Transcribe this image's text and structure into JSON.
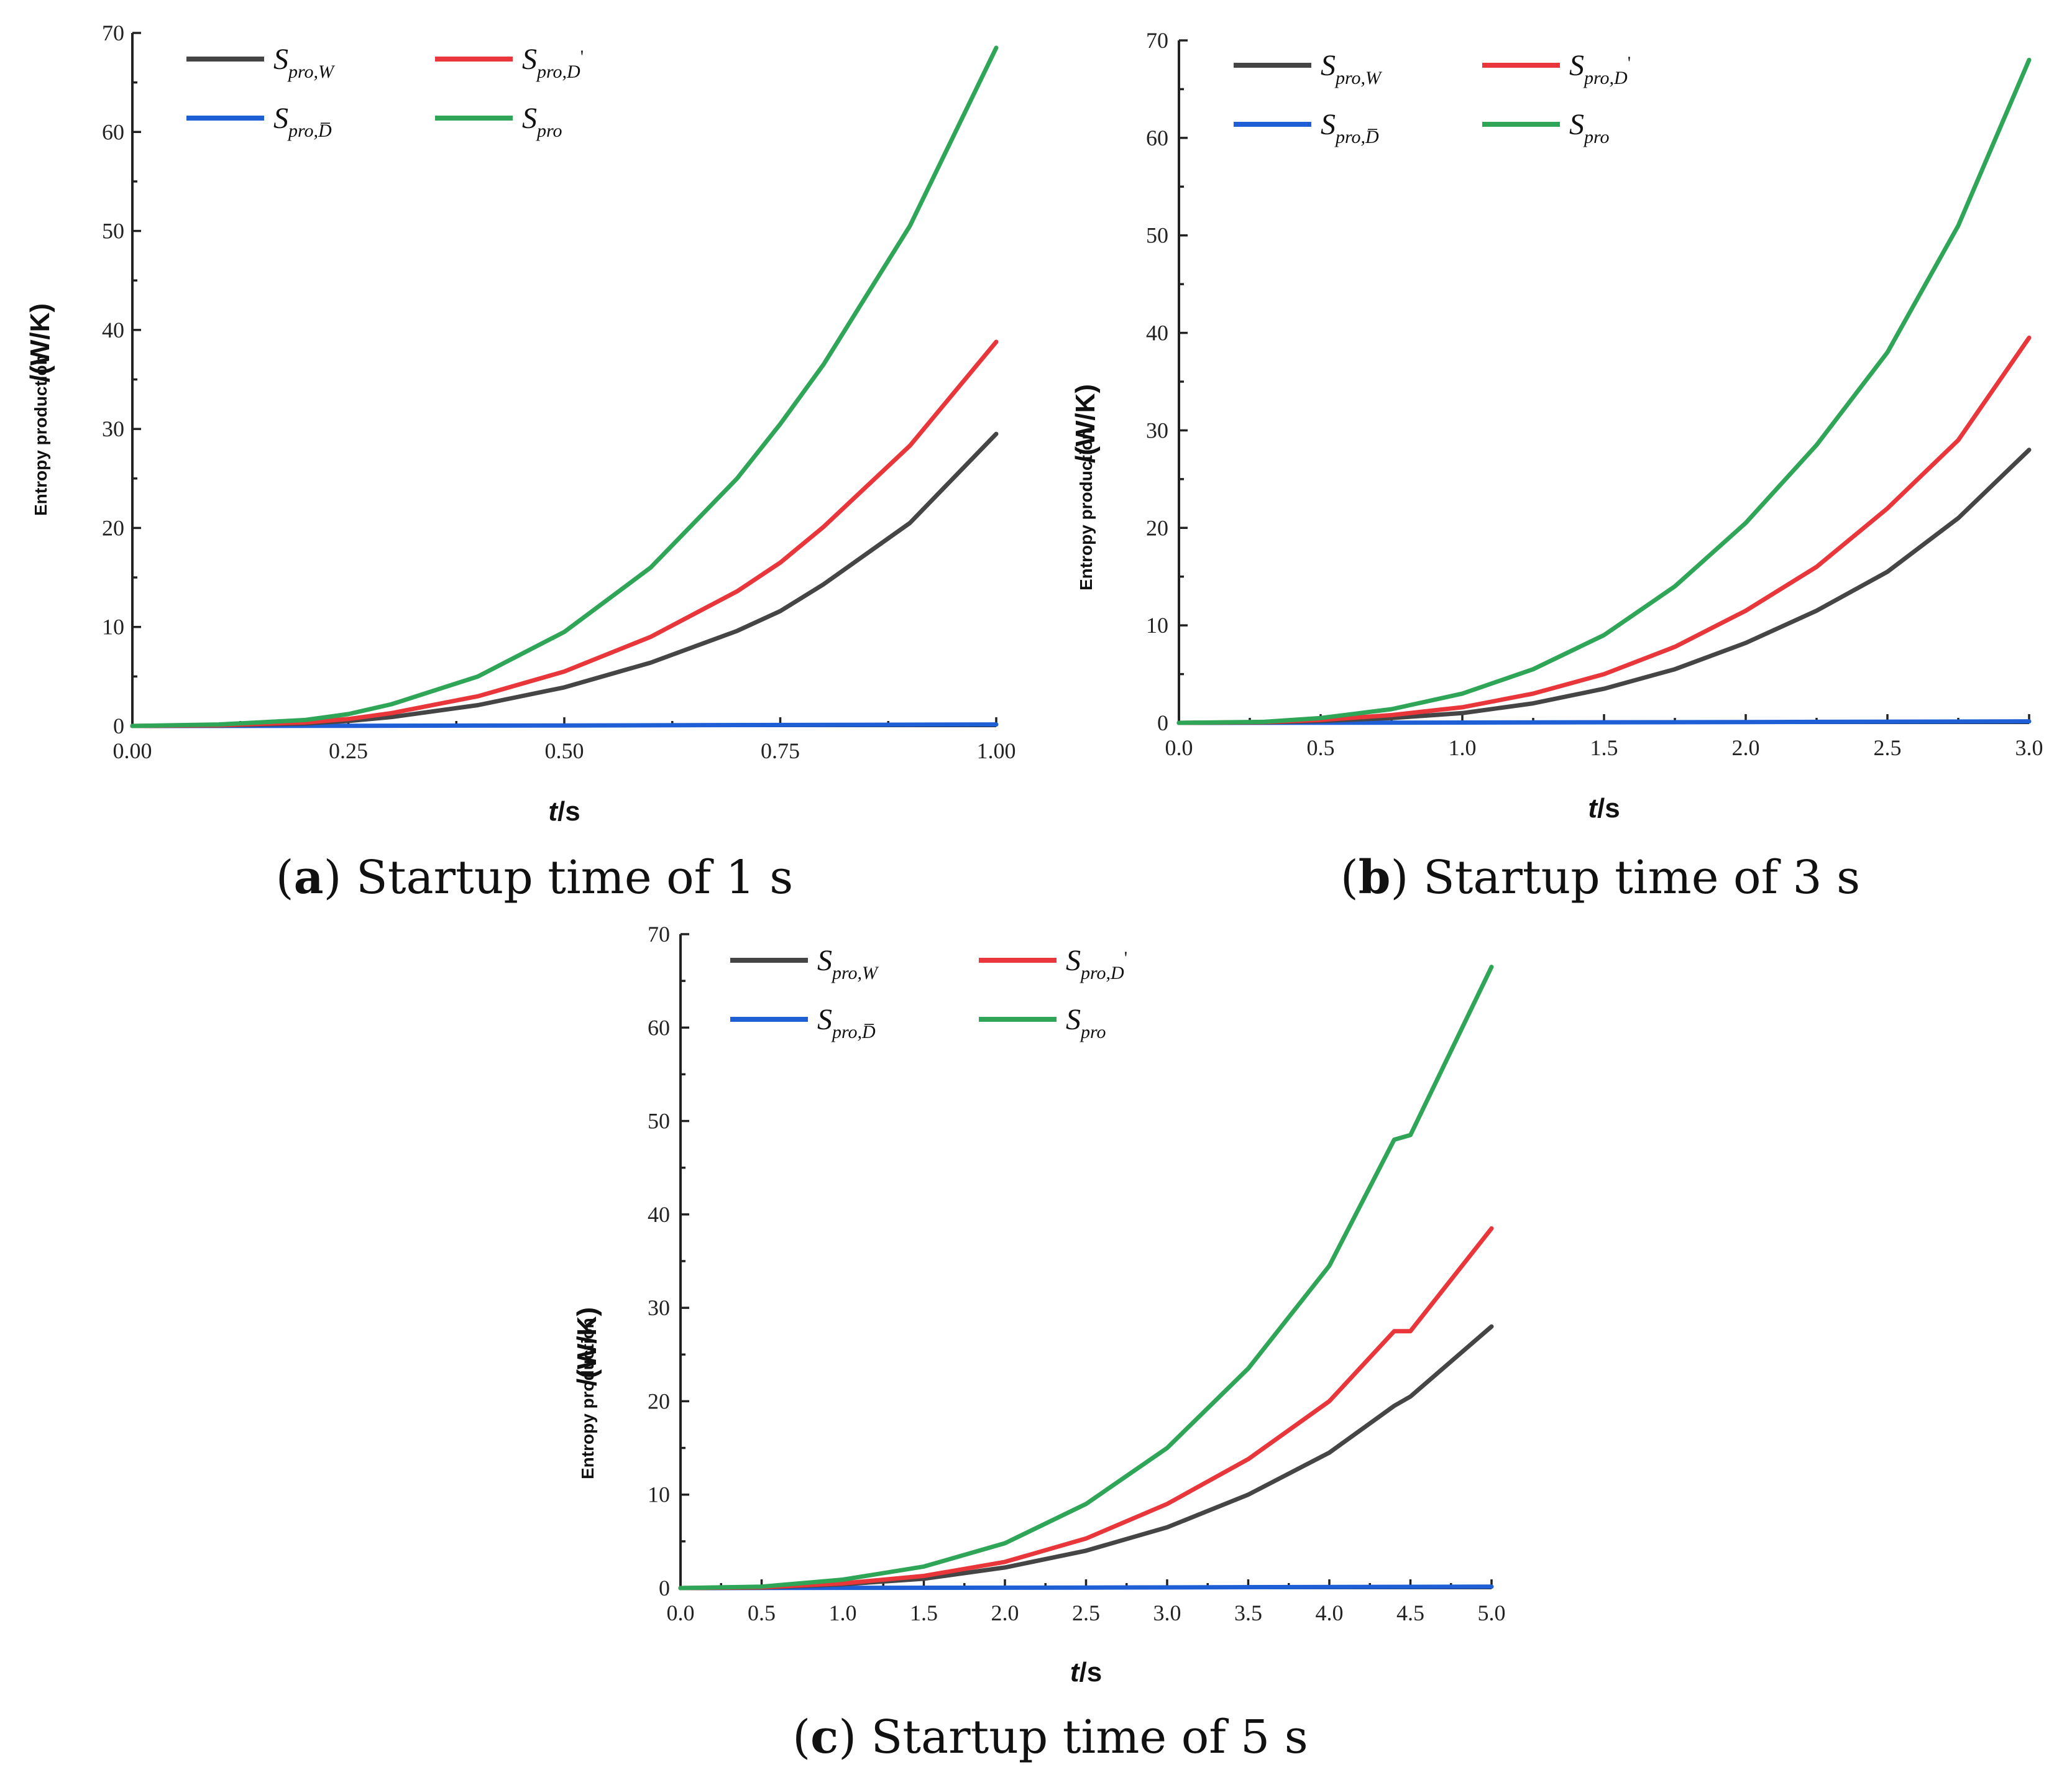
{
  "chart_data": [
    {
      "type": "line",
      "panel": "a",
      "caption_letter": "a",
      "caption_text": "Startup time of 1 s",
      "ylabel_small": "Entropy production",
      "ylabel_unit": "/(W/K)",
      "xlabel_var": "t",
      "xlabel_unit": "/s",
      "xlim": [
        0,
        1.0
      ],
      "ylim": [
        0,
        70
      ],
      "x_ticks": [
        "0.00",
        "0.25",
        "0.50",
        "0.75",
        "1.00"
      ],
      "x_tick_values": [
        0,
        0.25,
        0.5,
        0.75,
        1.0
      ],
      "y_ticks": [
        "0",
        "10",
        "20",
        "30",
        "40",
        "50",
        "60",
        "70"
      ],
      "y_tick_values": [
        0,
        10,
        20,
        30,
        40,
        50,
        60,
        70
      ],
      "legend": [
        {
          "main": "S",
          "sub": "pro,W",
          "color": "#454545"
        },
        {
          "main": "S",
          "sub": "pro,D",
          "sup": "'",
          "color": "#e8363a"
        },
        {
          "main": "S",
          "sub": "pro,D̅",
          "color": "#1f5fd6"
        },
        {
          "main": "S",
          "sub": "pro",
          "color": "#2ea557"
        }
      ],
      "series": [
        {
          "name": "S_pro,W",
          "color": "#454545",
          "x": [
            0,
            0.1,
            0.2,
            0.25,
            0.3,
            0.4,
            0.5,
            0.6,
            0.7,
            0.75,
            0.8,
            0.9,
            1.0
          ],
          "y": [
            0,
            0.05,
            0.25,
            0.5,
            0.9,
            2.1,
            3.9,
            6.4,
            9.6,
            11.6,
            14.3,
            20.5,
            29.5
          ]
        },
        {
          "name": "S_pro,D'",
          "color": "#e8363a",
          "x": [
            0,
            0.1,
            0.2,
            0.25,
            0.3,
            0.4,
            0.5,
            0.6,
            0.7,
            0.75,
            0.8,
            0.9,
            1.0
          ],
          "y": [
            0,
            0.08,
            0.35,
            0.7,
            1.3,
            3.0,
            5.5,
            9.0,
            13.6,
            16.5,
            20.1,
            28.3,
            38.8
          ]
        },
        {
          "name": "S_pro,D̅",
          "color": "#1f5fd6",
          "x": [
            0,
            0.25,
            0.5,
            0.75,
            1.0
          ],
          "y": [
            0,
            0.02,
            0.05,
            0.1,
            0.15
          ]
        },
        {
          "name": "S_pro",
          "color": "#2ea557",
          "x": [
            0,
            0.1,
            0.2,
            0.25,
            0.3,
            0.4,
            0.5,
            0.6,
            0.7,
            0.75,
            0.8,
            0.9,
            1.0
          ],
          "y": [
            0,
            0.15,
            0.6,
            1.2,
            2.2,
            5.0,
            9.5,
            16.0,
            25.0,
            30.5,
            36.5,
            50.5,
            68.5
          ]
        }
      ]
    },
    {
      "type": "line",
      "panel": "b",
      "caption_letter": "b",
      "caption_text": "Startup time of 3 s",
      "ylabel_small": "Entropy production",
      "ylabel_unit": "/(W/K)",
      "xlabel_var": "t",
      "xlabel_unit": "/s",
      "xlim": [
        0,
        3.0
      ],
      "ylim": [
        0,
        70
      ],
      "x_ticks": [
        "0.0",
        "0.5",
        "1.0",
        "1.5",
        "2.0",
        "2.5",
        "3.0"
      ],
      "x_tick_values": [
        0,
        0.5,
        1.0,
        1.5,
        2.0,
        2.5,
        3.0
      ],
      "y_ticks": [
        "0",
        "10",
        "20",
        "30",
        "40",
        "50",
        "60",
        "70"
      ],
      "y_tick_values": [
        0,
        10,
        20,
        30,
        40,
        50,
        60,
        70
      ],
      "legend": [
        {
          "main": "S",
          "sub": "pro,W",
          "color": "#454545"
        },
        {
          "main": "S",
          "sub": "pro,D",
          "sup": "'",
          "color": "#e8363a"
        },
        {
          "main": "S",
          "sub": "pro,D̅",
          "color": "#1f5fd6"
        },
        {
          "main": "S",
          "sub": "pro",
          "color": "#2ea557"
        }
      ],
      "series": [
        {
          "name": "S_pro,W",
          "color": "#454545",
          "x": [
            0,
            0.3,
            0.5,
            0.75,
            1.0,
            1.25,
            1.5,
            1.75,
            2.0,
            2.25,
            2.5,
            2.75,
            3.0
          ],
          "y": [
            0,
            0.05,
            0.2,
            0.5,
            1.0,
            2.0,
            3.5,
            5.5,
            8.2,
            11.5,
            15.5,
            21.0,
            28.0
          ]
        },
        {
          "name": "S_pro,D'",
          "color": "#e8363a",
          "x": [
            0,
            0.3,
            0.5,
            0.75,
            1.0,
            1.25,
            1.5,
            1.75,
            2.0,
            2.25,
            2.5,
            2.75,
            3.0
          ],
          "y": [
            0,
            0.07,
            0.3,
            0.8,
            1.6,
            3.0,
            5.0,
            7.8,
            11.5,
            16.0,
            22.0,
            29.0,
            39.5
          ]
        },
        {
          "name": "S_pro,D̅",
          "color": "#1f5fd6",
          "x": [
            0,
            1.0,
            2.0,
            3.0
          ],
          "y": [
            0,
            0.03,
            0.08,
            0.15
          ]
        },
        {
          "name": "S_pro",
          "color": "#2ea557",
          "x": [
            0,
            0.3,
            0.5,
            0.75,
            1.0,
            1.25,
            1.5,
            1.75,
            2.0,
            2.25,
            2.5,
            2.75,
            3.0
          ],
          "y": [
            0,
            0.1,
            0.5,
            1.4,
            3.0,
            5.5,
            9.0,
            14.0,
            20.5,
            28.5,
            38.0,
            51.0,
            68.0
          ]
        }
      ]
    },
    {
      "type": "line",
      "panel": "c",
      "caption_letter": "c",
      "caption_text": "Startup time of 5 s",
      "ylabel_small": "Entropy production",
      "ylabel_unit": "/(W/K)",
      "xlabel_var": "t",
      "xlabel_unit": "/s",
      "xlim": [
        0,
        5.0
      ],
      "ylim": [
        0,
        70
      ],
      "x_ticks": [
        "0.0",
        "0.5",
        "1.0",
        "1.5",
        "2.0",
        "2.5",
        "3.0",
        "3.5",
        "4.0",
        "4.5",
        "5.0"
      ],
      "x_tick_values": [
        0,
        0.5,
        1.0,
        1.5,
        2.0,
        2.5,
        3.0,
        3.5,
        4.0,
        4.5,
        5.0
      ],
      "y_ticks": [
        "0",
        "10",
        "20",
        "30",
        "40",
        "50",
        "60",
        "70"
      ],
      "y_tick_values": [
        0,
        10,
        20,
        30,
        40,
        50,
        60,
        70
      ],
      "legend": [
        {
          "main": "S",
          "sub": "pro,W",
          "color": "#454545"
        },
        {
          "main": "S",
          "sub": "pro,D",
          "sup": "'",
          "color": "#e8363a"
        },
        {
          "main": "S",
          "sub": "pro,D̅",
          "color": "#1f5fd6"
        },
        {
          "main": "S",
          "sub": "pro",
          "color": "#2ea557"
        }
      ],
      "series": [
        {
          "name": "S_pro,W",
          "color": "#454545",
          "x": [
            0,
            0.5,
            1.0,
            1.5,
            2.0,
            2.5,
            3.0,
            3.5,
            4.0,
            4.4,
            4.5,
            5.0
          ],
          "y": [
            0,
            0.05,
            0.4,
            1.0,
            2.2,
            4.0,
            6.5,
            10.0,
            14.5,
            19.5,
            20.5,
            28.0
          ]
        },
        {
          "name": "S_pro,D'",
          "color": "#e8363a",
          "x": [
            0,
            0.5,
            1.0,
            1.5,
            2.0,
            2.5,
            3.0,
            3.5,
            4.0,
            4.4,
            4.5,
            5.0
          ],
          "y": [
            0,
            0.08,
            0.5,
            1.3,
            2.8,
            5.3,
            9.0,
            13.8,
            20.0,
            27.5,
            27.5,
            38.5
          ]
        },
        {
          "name": "S_pro,D̅",
          "color": "#1f5fd6",
          "x": [
            0,
            2.5,
            5.0
          ],
          "y": [
            0,
            0.05,
            0.15
          ]
        },
        {
          "name": "S_pro",
          "color": "#2ea557",
          "x": [
            0,
            0.5,
            1.0,
            1.5,
            2.0,
            2.5,
            3.0,
            3.5,
            4.0,
            4.4,
            4.5,
            5.0
          ],
          "y": [
            0,
            0.15,
            0.9,
            2.3,
            4.8,
            9.0,
            15.0,
            23.5,
            34.5,
            48.0,
            48.5,
            66.5
          ]
        }
      ]
    }
  ]
}
